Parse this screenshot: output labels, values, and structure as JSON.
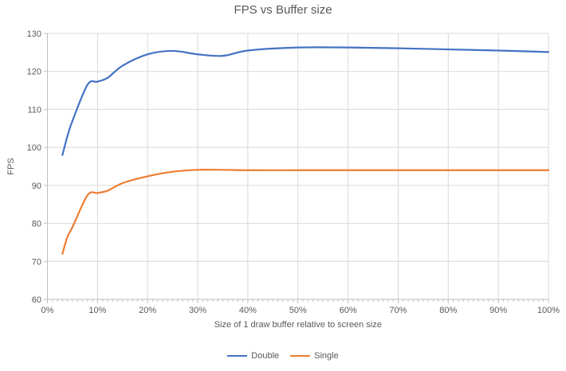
{
  "chart_data": {
    "type": "line",
    "title": "FPS vs Buffer size",
    "xlabel": "Size of 1 draw buffer relative to screen size",
    "ylabel": "FPS",
    "xlim": [
      0,
      100
    ],
    "ylim": [
      60,
      130
    ],
    "x_tick_labels": [
      "0%",
      "10%",
      "20%",
      "30%",
      "40%",
      "50%",
      "60%",
      "70%",
      "80%",
      "90%",
      "100%"
    ],
    "x_tick_values": [
      0,
      10,
      20,
      30,
      40,
      50,
      60,
      70,
      80,
      90,
      100
    ],
    "x_minor_tick_step": 1,
    "y_ticks": [
      60,
      70,
      80,
      90,
      100,
      110,
      120,
      130
    ],
    "grid": true,
    "smooth_lines": true,
    "legend_position": "bottom",
    "x": [
      3,
      4,
      5,
      8,
      10,
      12,
      15,
      20,
      25,
      30,
      35,
      40,
      50,
      60,
      70,
      80,
      90,
      100
    ],
    "series": [
      {
        "name": "Double",
        "color": "#4472C4",
        "values": [
          98,
          103,
          107,
          116.5,
          117.3,
          118.3,
          121.5,
          124.5,
          125.4,
          124.5,
          124.1,
          125.5,
          126.3,
          126.3,
          126.1,
          125.8,
          125.5,
          125.1
        ]
      },
      {
        "name": "Single",
        "color": "#ED7D31",
        "values": [
          72,
          76.5,
          79,
          87.4,
          88,
          88.6,
          90.6,
          92.4,
          93.6,
          94.1,
          94.1,
          94,
          94,
          94,
          94,
          94,
          94,
          94
        ]
      }
    ],
    "colors": {
      "grid": "#D9D9D9",
      "axis": "#BFBFBF",
      "text": "#595959",
      "title": "#595959"
    }
  }
}
